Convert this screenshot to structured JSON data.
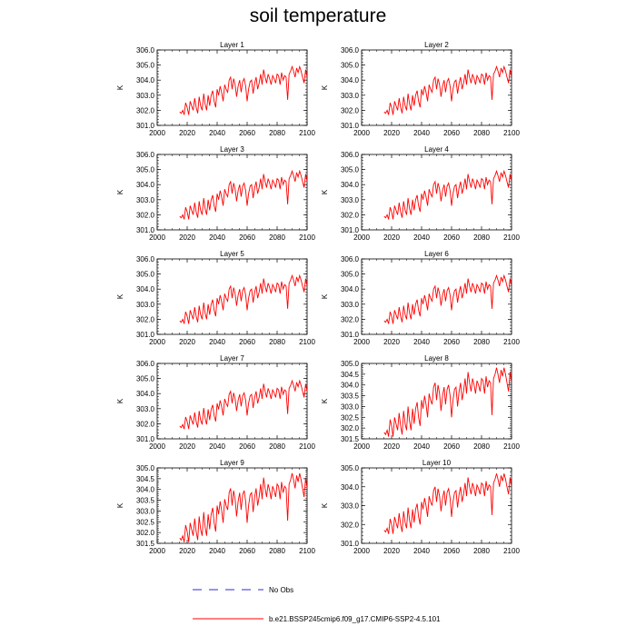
{
  "title": "soil temperature",
  "legend": {
    "obs_label": "No Obs",
    "obs_color": "#2b2bd9",
    "model_label": "b.e21.BSSP245cmip6.f09_g17.CMIP6-SSP2-4.5.101",
    "model_color": "#ff0000"
  },
  "chart_data": [
    {
      "type": "line",
      "title": "Layer 1",
      "xlabel": "",
      "ylabel": "K",
      "xlim": [
        2000,
        2100
      ],
      "ylim": [
        301,
        306
      ],
      "xticks": [
        2000,
        2020,
        2040,
        2060,
        2080,
        2100
      ],
      "yticks": [
        301,
        302,
        303,
        304,
        305,
        306
      ],
      "ytick_labels": [
        "301.0",
        "302.0",
        "303.0",
        "304.0",
        "305.0",
        "306.0"
      ],
      "series": [
        {
          "color": "#ff0000",
          "offset": 0
        }
      ]
    },
    {
      "type": "line",
      "title": "Layer 2",
      "xlabel": "",
      "ylabel": "K",
      "xlim": [
        2000,
        2100
      ],
      "ylim": [
        301,
        306
      ],
      "xticks": [
        2000,
        2020,
        2040,
        2060,
        2080,
        2100
      ],
      "yticks": [
        301,
        302,
        303,
        304,
        305,
        306
      ],
      "ytick_labels": [
        "301.0",
        "302.0",
        "303.0",
        "304.0",
        "305.0",
        "306.0"
      ],
      "series": [
        {
          "color": "#ff0000",
          "offset": 0
        }
      ]
    },
    {
      "type": "line",
      "title": "Layer 3",
      "xlabel": "",
      "ylabel": "K",
      "xlim": [
        2000,
        2100
      ],
      "ylim": [
        301,
        306
      ],
      "xticks": [
        2000,
        2020,
        2040,
        2060,
        2080,
        2100
      ],
      "yticks": [
        301,
        302,
        303,
        304,
        305,
        306
      ],
      "ytick_labels": [
        "301.0",
        "302.0",
        "303.0",
        "304.0",
        "305.0",
        "306.0"
      ],
      "series": [
        {
          "color": "#ff0000",
          "offset": 0
        }
      ]
    },
    {
      "type": "line",
      "title": "Layer 4",
      "xlabel": "",
      "ylabel": "K",
      "xlim": [
        2000,
        2100
      ],
      "ylim": [
        301,
        306
      ],
      "xticks": [
        2000,
        2020,
        2040,
        2060,
        2080,
        2100
      ],
      "yticks": [
        301,
        302,
        303,
        304,
        305,
        306
      ],
      "ytick_labels": [
        "301.0",
        "302.0",
        "303.0",
        "304.0",
        "305.0",
        "306.0"
      ],
      "series": [
        {
          "color": "#ff0000",
          "offset": 0
        }
      ]
    },
    {
      "type": "line",
      "title": "Layer 5",
      "xlabel": "",
      "ylabel": "K",
      "xlim": [
        2000,
        2100
      ],
      "ylim": [
        301,
        306
      ],
      "xticks": [
        2000,
        2020,
        2040,
        2060,
        2080,
        2100
      ],
      "yticks": [
        301,
        302,
        303,
        304,
        305,
        306
      ],
      "ytick_labels": [
        "301.0",
        "302.0",
        "303.0",
        "304.0",
        "305.0",
        "306.0"
      ],
      "series": [
        {
          "color": "#ff0000",
          "offset": 0
        }
      ]
    },
    {
      "type": "line",
      "title": "Layer 6",
      "xlabel": "",
      "ylabel": "K",
      "xlim": [
        2000,
        2100
      ],
      "ylim": [
        301,
        306
      ],
      "xticks": [
        2000,
        2020,
        2040,
        2060,
        2080,
        2100
      ],
      "yticks": [
        301,
        302,
        303,
        304,
        305,
        306
      ],
      "ytick_labels": [
        "301.0",
        "302.0",
        "303.0",
        "304.0",
        "305.0",
        "306.0"
      ],
      "series": [
        {
          "color": "#ff0000",
          "offset": 0
        }
      ]
    },
    {
      "type": "line",
      "title": "Layer 7",
      "xlabel": "",
      "ylabel": "K",
      "xlim": [
        2000,
        2100
      ],
      "ylim": [
        301,
        306
      ],
      "xticks": [
        2000,
        2020,
        2040,
        2060,
        2080,
        2100
      ],
      "yticks": [
        301,
        302,
        303,
        304,
        305,
        306
      ],
      "ytick_labels": [
        "301.0",
        "302.0",
        "303.0",
        "304.0",
        "305.0",
        "306.0"
      ],
      "series": [
        {
          "color": "#ff0000",
          "offset": -0.05
        }
      ]
    },
    {
      "type": "line",
      "title": "Layer 8",
      "xlabel": "",
      "ylabel": "K",
      "xlim": [
        2000,
        2100
      ],
      "ylim": [
        301.5,
        305
      ],
      "xticks": [
        2000,
        2020,
        2040,
        2060,
        2080,
        2100
      ],
      "yticks": [
        301.5,
        302,
        302.5,
        303,
        303.5,
        304,
        304.5,
        305
      ],
      "ytick_labels": [
        "301.5",
        "302.0",
        "302.5",
        "303.0",
        "303.5",
        "304.0",
        "304.5",
        "305.0"
      ],
      "series": [
        {
          "color": "#ff0000",
          "offset": -0.1
        }
      ]
    },
    {
      "type": "line",
      "title": "Layer 9",
      "xlabel": "",
      "ylabel": "K",
      "xlim": [
        2000,
        2100
      ],
      "ylim": [
        301.5,
        305
      ],
      "xticks": [
        2000,
        2020,
        2040,
        2060,
        2080,
        2100
      ],
      "yticks": [
        301.5,
        302,
        302.5,
        303,
        303.5,
        304,
        304.5,
        305
      ],
      "ytick_labels": [
        "301.5",
        "302.0",
        "302.5",
        "303.0",
        "303.5",
        "304.0",
        "304.5",
        "305.0"
      ],
      "series": [
        {
          "color": "#ff0000",
          "offset": -0.15
        }
      ]
    },
    {
      "type": "line",
      "title": "Layer 10",
      "xlabel": "",
      "ylabel": "K",
      "xlim": [
        2000,
        2100
      ],
      "ylim": [
        301,
        305
      ],
      "xticks": [
        2000,
        2020,
        2040,
        2060,
        2080,
        2100
      ],
      "yticks": [
        301,
        302,
        303,
        304,
        305
      ],
      "ytick_labels": [
        "301.0",
        "302.0",
        "303.0",
        "304.0",
        "305.0"
      ],
      "series": [
        {
          "color": "#ff0000",
          "offset": -0.2
        }
      ]
    }
  ],
  "base_series": {
    "x": [
      2015,
      2016,
      2017,
      2018,
      2019,
      2020,
      2021,
      2022,
      2023,
      2024,
      2025,
      2026,
      2027,
      2028,
      2029,
      2030,
      2031,
      2032,
      2033,
      2034,
      2035,
      2036,
      2037,
      2038,
      2039,
      2040,
      2041,
      2042,
      2043,
      2044,
      2045,
      2046,
      2047,
      2048,
      2049,
      2050,
      2051,
      2052,
      2053,
      2054,
      2055,
      2056,
      2057,
      2058,
      2059,
      2060,
      2061,
      2062,
      2063,
      2064,
      2065,
      2066,
      2067,
      2068,
      2069,
      2070,
      2071,
      2072,
      2073,
      2074,
      2075,
      2076,
      2077,
      2078,
      2079,
      2080,
      2081,
      2082,
      2083,
      2084,
      2085,
      2086,
      2087,
      2088,
      2089,
      2090,
      2091,
      2092,
      2093,
      2094,
      2095,
      2096,
      2097,
      2098,
      2099,
      2100
    ],
    "y": [
      301.9,
      301.8,
      302.0,
      301.7,
      302.5,
      302.2,
      301.7,
      302.6,
      302.3,
      302.0,
      302.8,
      302.2,
      301.8,
      302.9,
      302.3,
      302.0,
      303.1,
      302.4,
      302.0,
      303.0,
      302.3,
      303.0,
      303.3,
      302.6,
      302.2,
      303.4,
      303.0,
      303.6,
      303.2,
      302.6,
      303.7,
      303.4,
      303.2,
      304.0,
      304.2,
      303.4,
      304.1,
      303.7,
      302.9,
      303.6,
      304.0,
      303.2,
      303.9,
      304.1,
      303.6,
      302.6,
      303.4,
      303.9,
      304.0,
      303.1,
      303.8,
      304.2,
      303.4,
      303.8,
      304.4,
      303.7,
      304.7,
      304.2,
      303.8,
      304.4,
      304.1,
      303.7,
      304.3,
      304.1,
      303.8,
      304.4,
      304.3,
      303.7,
      304.5,
      304.0,
      304.3,
      304.2,
      302.7,
      304.4,
      304.6,
      304.9,
      304.6,
      304.2,
      304.8,
      304.5,
      304.9,
      304.6,
      304.2,
      303.8,
      304.7,
      304.2
    ]
  }
}
